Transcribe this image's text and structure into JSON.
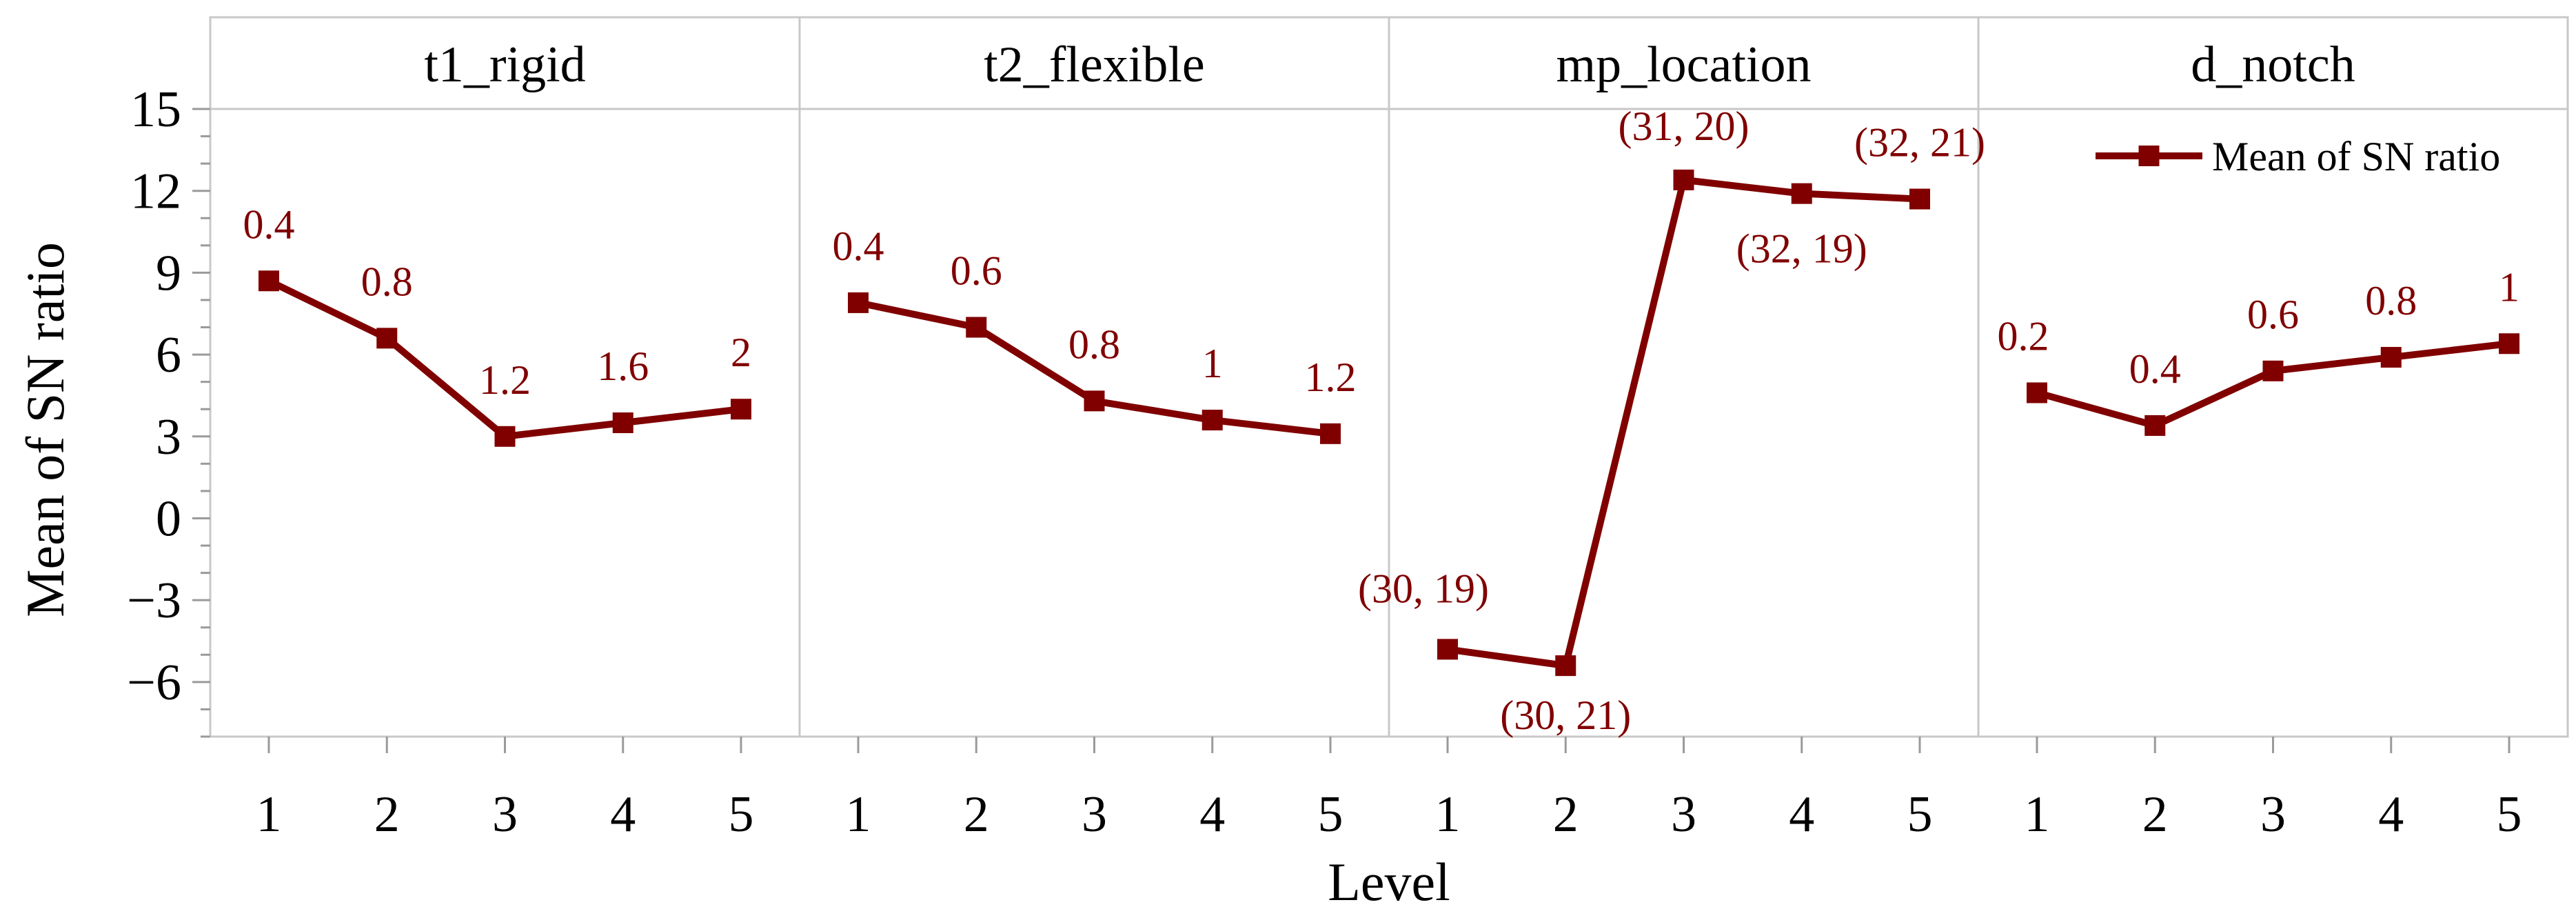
{
  "chart_data": {
    "type": "line",
    "ylabel": "Mean of SN ratio",
    "xlabel": "Level",
    "ylim": [
      -8,
      15
    ],
    "yticks": [
      -6,
      -3,
      0,
      3,
      6,
      9,
      12,
      15
    ],
    "series_color": "#800000",
    "legend": {
      "label": "Mean of SN ratio",
      "position": "top-right"
    },
    "panels": [
      {
        "title": "t1_rigid",
        "x": [
          "1",
          "2",
          "3",
          "4",
          "5"
        ],
        "values": [
          8.7,
          6.6,
          3.0,
          3.5,
          4.0
        ],
        "point_labels": [
          "0.4",
          "0.8",
          "1.2",
          "1.6",
          "2"
        ]
      },
      {
        "title": "t2_flexible",
        "x": [
          "1",
          "2",
          "3",
          "4",
          "5"
        ],
        "values": [
          7.9,
          7.0,
          4.3,
          3.6,
          3.1
        ],
        "point_labels": [
          "0.4",
          "0.6",
          "0.8",
          "1",
          "1.2"
        ]
      },
      {
        "title": "mp_location",
        "x": [
          "1",
          "2",
          "3",
          "4",
          "5"
        ],
        "values": [
          -4.8,
          -5.4,
          12.4,
          11.9,
          11.7
        ],
        "point_labels": [
          "(30, 19)",
          "(30, 21)",
          "(31, 20)",
          "(32, 19)",
          "(32, 21)"
        ]
      },
      {
        "title": "d_notch",
        "x": [
          "1",
          "2",
          "3",
          "4",
          "5"
        ],
        "values": [
          4.6,
          3.4,
          5.4,
          5.9,
          6.4
        ],
        "point_labels": [
          "0.2",
          "0.4",
          "0.6",
          "0.8",
          "1"
        ]
      }
    ]
  }
}
